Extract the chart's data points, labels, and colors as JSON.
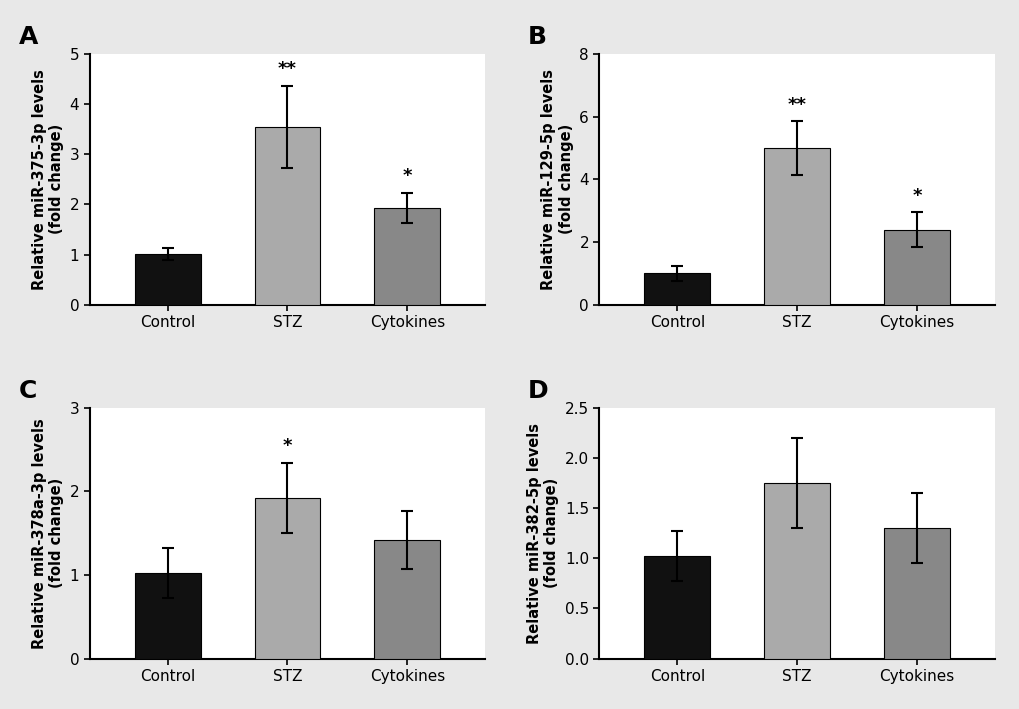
{
  "panels": [
    {
      "label": "A",
      "ylabel": "Relative miR-375-3p levels\n(fold change)",
      "categories": [
        "Control",
        "STZ",
        "Cytokines"
      ],
      "values": [
        1.02,
        3.55,
        1.93
      ],
      "errors": [
        0.12,
        0.82,
        0.3
      ],
      "colors": [
        "#111111",
        "#aaaaaa",
        "#888888"
      ],
      "ylim": [
        0,
        5
      ],
      "yticks": [
        0,
        1,
        2,
        3,
        4,
        5
      ],
      "ytick_labels": [
        "0",
        "1",
        "2",
        "3",
        "4",
        "5"
      ],
      "significance": [
        "",
        "**",
        "*"
      ]
    },
    {
      "label": "B",
      "ylabel": "Relative miR-129-5p levels\n(fold change)",
      "categories": [
        "Control",
        "STZ",
        "Cytokines"
      ],
      "values": [
        1.0,
        5.0,
        2.4
      ],
      "errors": [
        0.25,
        0.85,
        0.55
      ],
      "colors": [
        "#111111",
        "#aaaaaa",
        "#888888"
      ],
      "ylim": [
        0,
        8
      ],
      "yticks": [
        0,
        2,
        4,
        6,
        8
      ],
      "ytick_labels": [
        "0",
        "2",
        "4",
        "6",
        "8"
      ],
      "significance": [
        "",
        "**",
        "*"
      ]
    },
    {
      "label": "C",
      "ylabel": "Relative miR-378a-3p levels\n(fold change)",
      "categories": [
        "Control",
        "STZ",
        "Cytokines"
      ],
      "values": [
        1.02,
        1.92,
        1.42
      ],
      "errors": [
        0.3,
        0.42,
        0.35
      ],
      "colors": [
        "#111111",
        "#aaaaaa",
        "#888888"
      ],
      "ylim": [
        0,
        3
      ],
      "yticks": [
        0,
        1,
        2,
        3
      ],
      "ytick_labels": [
        "0",
        "1",
        "2",
        "3"
      ],
      "significance": [
        "",
        "*",
        ""
      ]
    },
    {
      "label": "D",
      "ylabel": "Relative miR-382-5p levels\n(fold change)",
      "categories": [
        "Control",
        "STZ",
        "Cytokines"
      ],
      "values": [
        1.02,
        1.75,
        1.3
      ],
      "errors": [
        0.25,
        0.45,
        0.35
      ],
      "colors": [
        "#111111",
        "#aaaaaa",
        "#888888"
      ],
      "ylim": [
        0,
        2.5
      ],
      "yticks": [
        0.0,
        0.5,
        1.0,
        1.5,
        2.0,
        2.5
      ],
      "ytick_labels": [
        "0.0",
        "0.5",
        "1.0",
        "1.5",
        "2.0",
        "2.5"
      ],
      "significance": [
        "",
        "",
        ""
      ]
    }
  ],
  "bar_width": 0.55,
  "background_color": "#ffffff",
  "fig_background": "#e8e8e8",
  "capsize": 4,
  "fontsize_label": 10.5,
  "fontsize_tick": 11,
  "fontsize_panel_label": 18,
  "fontsize_sig": 13,
  "error_linewidth": 1.5
}
